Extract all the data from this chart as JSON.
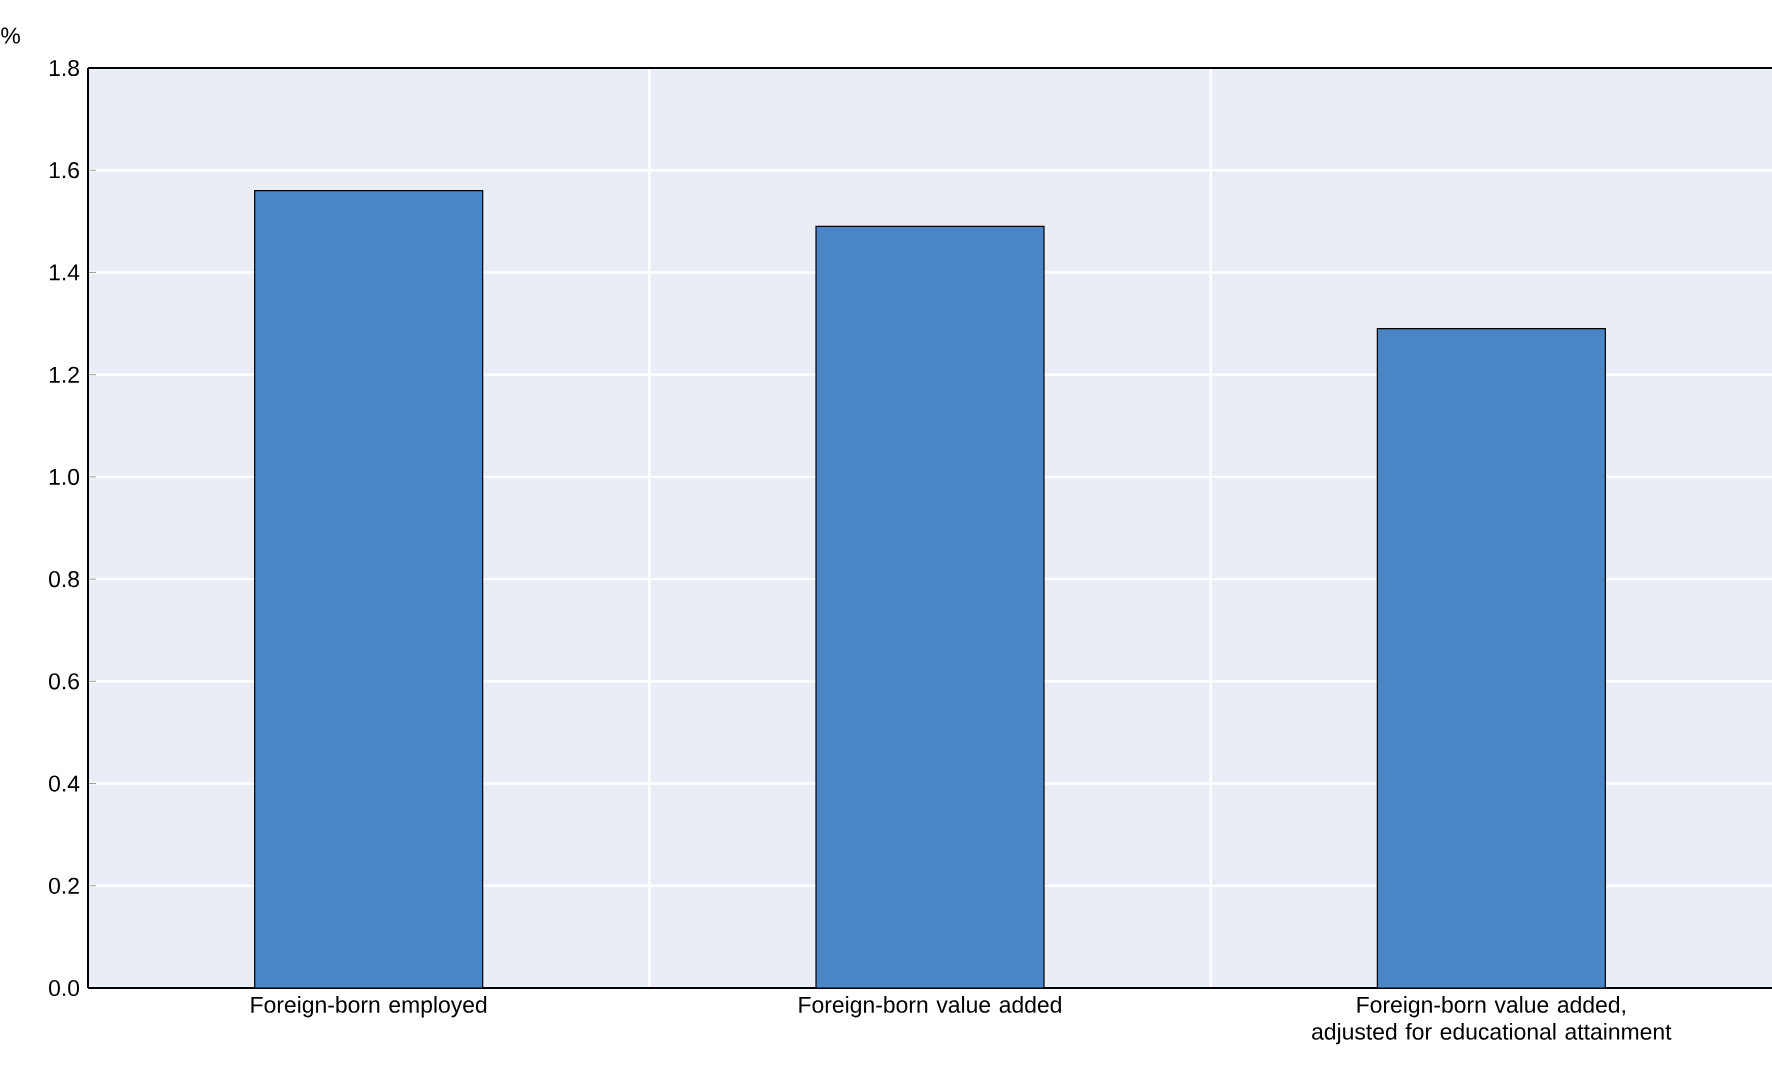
{
  "chart_data": {
    "type": "bar",
    "ylabel": "%",
    "categories": [
      "Foreign-born employed",
      "Foreign-born value added",
      "Foreign-born value added, adjusted for educational attainment"
    ],
    "values": [
      1.56,
      1.49,
      1.29
    ],
    "color": "#4a86c5",
    "ylim": [
      0,
      1.8
    ],
    "yticks": [
      {
        "value": 0,
        "label": "0.0"
      },
      {
        "value": 0.2,
        "label": "0.2"
      },
      {
        "value": 0.4,
        "label": "0.4"
      },
      {
        "value": 0.6,
        "label": "0.6"
      },
      {
        "value": 0.8,
        "label": "0.8"
      },
      {
        "value": 1,
        "label": "1.0"
      },
      {
        "value": 1.2,
        "label": "1.2"
      },
      {
        "value": 1.4,
        "label": "1.4"
      },
      {
        "value": 1.6,
        "label": "1.6"
      },
      {
        "value": 1.8,
        "label": "1.8"
      }
    ],
    "grid": true
  }
}
